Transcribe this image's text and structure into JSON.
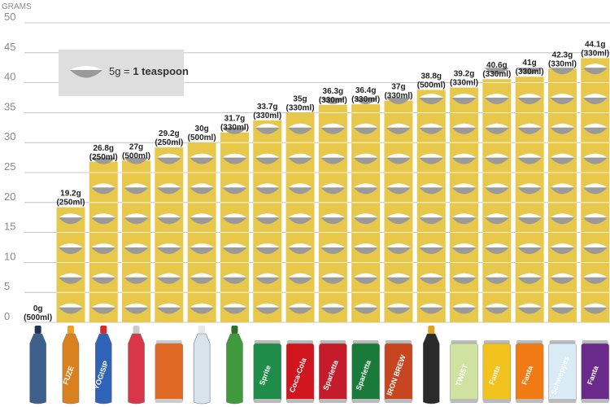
{
  "chart_data": {
    "type": "bar",
    "ylabel": "GRAMS",
    "ylim": [
      0,
      50
    ],
    "yticks": [
      0,
      5,
      10,
      15,
      20,
      25,
      30,
      35,
      40,
      45,
      50
    ],
    "grid": true,
    "legend": {
      "amount": "5g",
      "equals": "=",
      "unit": "1 teaspoon",
      "placement": "top-left"
    },
    "values": [
      0,
      19.2,
      26.8,
      27,
      29.2,
      30,
      31.7,
      33.7,
      35,
      36.3,
      36.4,
      37,
      38.8,
      39.2,
      40.6,
      41,
      42.3,
      44.1
    ],
    "value_labels": [
      "0g",
      "19.2g",
      "26.8g",
      "27g",
      "29.2g",
      "30g",
      "31.7g",
      "33.7g",
      "35g",
      "36.3g",
      "36.4g",
      "37g",
      "38.8g",
      "39.2g",
      "40.6g",
      "41g",
      "42.3g",
      "44.1g"
    ],
    "volumes": [
      "(500ml)",
      "(250ml)",
      "(250ml)",
      "(500ml)",
      "(250ml)",
      "(500ml)",
      "(330ml)",
      "(330ml)",
      "(330ml)",
      "(330ml)",
      "(330ml)",
      "(330ml)",
      "(500ml)",
      "(330ml)",
      "(330ml)",
      "(330ml)",
      "(330ml)",
      "(330ml)"
    ],
    "bar_color": "#e8c84a",
    "sugar_color": "#ffffff",
    "spoon_color": "#9a9a9a"
  },
  "drinks": [
    {
      "icon": "water-bottle-icon",
      "color": "#3d5f8c",
      "cap": "#1f3354",
      "kind": "bottle",
      "text": ""
    },
    {
      "icon": "fuze-tea-bottle-icon",
      "color": "#d9811f",
      "cap": "#f0a020",
      "kind": "bottle",
      "text": "FUZE"
    },
    {
      "icon": "yogisip-bottle-icon",
      "color": "#2f63b8",
      "cap": "#d62b2b",
      "kind": "bottle",
      "text": "YOGISIP"
    },
    {
      "icon": "sports-drink-bottle-icon",
      "color": "#d9364a",
      "cap": "#cccccc",
      "kind": "bottle",
      "text": ""
    },
    {
      "icon": "orange-can-icon",
      "color": "#e06a25",
      "cap": "#cccccc",
      "kind": "can",
      "text": ""
    },
    {
      "icon": "clear-water-bottle-icon",
      "color": "#d8e3ec",
      "cap": "#e8e8e8",
      "kind": "bottle",
      "text": ""
    },
    {
      "icon": "green-glass-bottle-icon",
      "color": "#3e9a3a",
      "cap": "#2d6e2b",
      "kind": "bottle",
      "text": ""
    },
    {
      "icon": "sprite-can-icon",
      "color": "#1f8c4a",
      "cap": "#bbbbbb",
      "kind": "can",
      "text": "Sprite"
    },
    {
      "icon": "coca-cola-can-icon",
      "color": "#d0151f",
      "cap": "#bbbbbb",
      "kind": "can",
      "text": "Coca-Cola"
    },
    {
      "icon": "sparletta-red-can-icon",
      "color": "#c41c2a",
      "cap": "#bbbbbb",
      "kind": "can",
      "text": "Sparletta"
    },
    {
      "icon": "sparletta-green-can-icon",
      "color": "#1a7a3a",
      "cap": "#bbbbbb",
      "kind": "can",
      "text": "Sparletta"
    },
    {
      "icon": "iron-brew-can-icon",
      "color": "#c8461f",
      "cap": "#bbbbbb",
      "kind": "can",
      "text": "IRON BREW"
    },
    {
      "icon": "sports-drink-black-bottle-icon",
      "color": "#2a2a2a",
      "cap": "#e0a21b",
      "kind": "bottle",
      "text": ""
    },
    {
      "icon": "twist-can-icon",
      "color": "#cfe2a0",
      "cap": "#bbbbbb",
      "kind": "can",
      "text": "TWIST"
    },
    {
      "icon": "fanta-pineapple-can-icon",
      "color": "#f2c21d",
      "cap": "#bbbbbb",
      "kind": "can",
      "text": "Fanta"
    },
    {
      "icon": "fanta-orange-can-icon",
      "color": "#f07a14",
      "cap": "#bbbbbb",
      "kind": "can",
      "text": "Fanta"
    },
    {
      "icon": "schweppes-can-icon",
      "color": "#d9ecf5",
      "cap": "#bbbbbb",
      "kind": "can",
      "text": "Schweppes"
    },
    {
      "icon": "fanta-grape-can-icon",
      "color": "#6a2a8c",
      "cap": "#bbbbbb",
      "kind": "can",
      "text": "Fanta"
    }
  ]
}
